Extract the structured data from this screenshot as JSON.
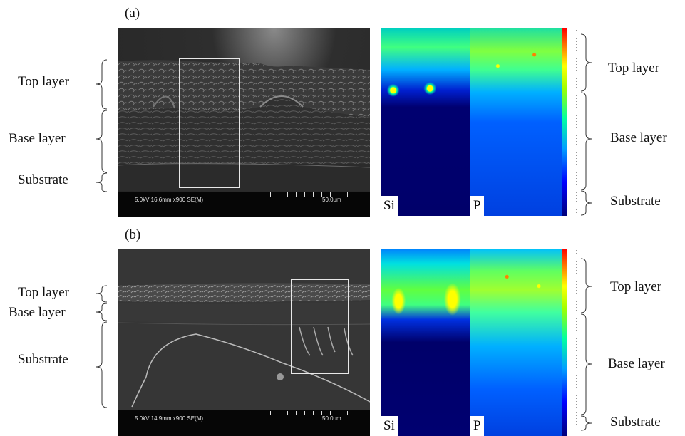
{
  "panels": [
    {
      "label": "(a)",
      "left_layers": [
        "Top layer",
        "Base layer",
        "Substrate"
      ],
      "right_layers": [
        "Top layer",
        "Base layer",
        "Substrate"
      ],
      "sem_info": "5.0kV 16.6mm x900 SE(M)",
      "sem_scale": "50.0um",
      "map_si": "Si",
      "map_p": "P"
    },
    {
      "label": "(b)",
      "left_layers": [
        "Top layer",
        "Base layer",
        "Substrate"
      ],
      "right_layers": [
        "Top layer",
        "Base layer",
        "Substrate"
      ],
      "sem_info": "5.0kV 14.9mm x900 SE(M)",
      "sem_scale": "50.0um",
      "map_si": "Si",
      "map_p": "P"
    }
  ],
  "colors": {
    "colormap": [
      "#00007a",
      "#0000ff",
      "#00a0ff",
      "#00ffa0",
      "#a0ff00",
      "#ffff00",
      "#ff8000",
      "#ff0000"
    ]
  }
}
